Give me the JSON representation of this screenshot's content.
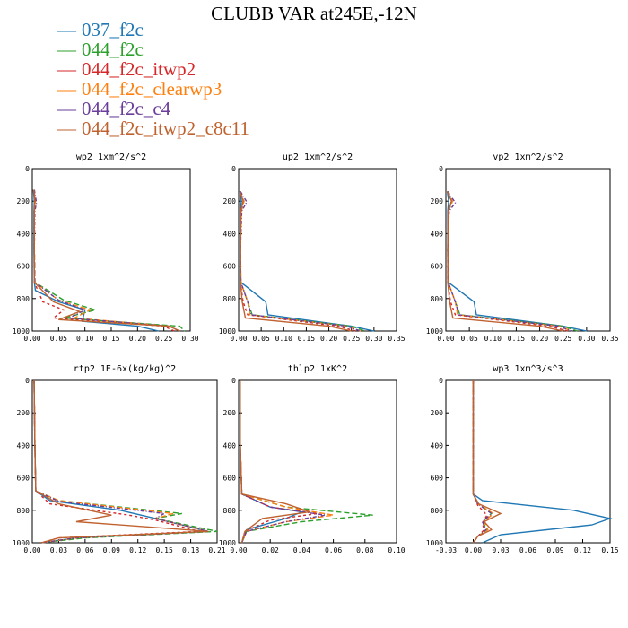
{
  "title": "CLUBB VAR at245E,-12N",
  "legend": [
    {
      "name": "037_f2c",
      "color": "#1f77b4"
    },
    {
      "name": "044_f2c",
      "color": "#2ca02c"
    },
    {
      "name": "044_f2c_itwp2",
      "color": "#d62728"
    },
    {
      "name": "044_f2c_clearwp3",
      "color": "#ff7f0e"
    },
    {
      "name": "044_f2c_c4",
      "color": "#6a3d9a"
    },
    {
      "name": "044_f2c_itwp2_c8c11",
      "color": "#c0622f"
    }
  ],
  "chart_data": [
    {
      "type": "line",
      "title": "wp2  1xm^2/s^2",
      "xlim": [
        0,
        0.3
      ],
      "xticks": [
        "0.00",
        "0.05",
        "0.10",
        "0.15",
        "0.20",
        "0.25",
        "0.30"
      ],
      "ylim": [
        1000,
        0
      ],
      "yticks": [
        "0",
        "200",
        "400",
        "600",
        "800",
        "1000"
      ],
      "series": [
        {
          "name": "037_f2c",
          "x": [
            0.002,
            0.004,
            0.003,
            0.003,
            0.004,
            0.006,
            0.05,
            0.1,
            0.095,
            0.2,
            0.24
          ],
          "y": [
            130,
            200,
            260,
            500,
            700,
            750,
            820,
            870,
            940,
            970,
            1000
          ]
        },
        {
          "name": "044_f2c",
          "x": [
            0.003,
            0.005,
            0.004,
            0.004,
            0.005,
            0.06,
            0.12,
            0.06,
            0.28,
            0.29
          ],
          "y": [
            130,
            200,
            260,
            500,
            700,
            810,
            870,
            920,
            970,
            1000
          ]
        },
        {
          "name": "044_f2c_itwp2",
          "x": [
            0.003,
            0.005,
            0.004,
            0.004,
            0.004,
            0.02,
            0.06,
            0.04,
            0.25,
            0.27
          ],
          "y": [
            130,
            200,
            260,
            500,
            700,
            820,
            870,
            920,
            970,
            1000
          ]
        },
        {
          "name": "044_f2c_clearwp3",
          "x": [
            0.003,
            0.006,
            0.004,
            0.004,
            0.005,
            0.05,
            0.11,
            0.08,
            0.26,
            0.28
          ],
          "y": [
            130,
            200,
            260,
            500,
            700,
            810,
            870,
            920,
            970,
            1000
          ]
        },
        {
          "name": "044_f2c_c4",
          "x": [
            0.004,
            0.008,
            0.005,
            0.004,
            0.005,
            0.05,
            0.1,
            0.07,
            0.26,
            0.28
          ],
          "y": [
            130,
            210,
            260,
            500,
            700,
            810,
            870,
            920,
            970,
            1000
          ]
        },
        {
          "name": "044_f2c_itwp2_c8c11",
          "x": [
            0.003,
            0.005,
            0.004,
            0.004,
            0.004,
            0.04,
            0.09,
            0.05,
            0.26,
            0.28
          ],
          "y": [
            130,
            200,
            260,
            500,
            700,
            820,
            880,
            930,
            970,
            1000
          ]
        }
      ]
    },
    {
      "type": "line",
      "title": "up2  1xm^2/s^2",
      "xlim": [
        0,
        0.35
      ],
      "xticks": [
        "0.00",
        "0.05",
        "0.10",
        "0.15",
        "0.20",
        "0.25",
        "0.30",
        "0.35"
      ],
      "ylim": [
        1000,
        0
      ],
      "yticks": [
        "0",
        "200",
        "400",
        "600",
        "800",
        "1000"
      ],
      "series": [
        {
          "name": "037_f2c",
          "x": [
            0.003,
            0.006,
            0.004,
            0.004,
            0.005,
            0.06,
            0.065,
            0.25,
            0.3
          ],
          "y": [
            140,
            200,
            260,
            500,
            700,
            820,
            900,
            970,
            1000
          ]
        },
        {
          "name": "044_f2c",
          "x": [
            0.003,
            0.012,
            0.006,
            0.004,
            0.005,
            0.02,
            0.03,
            0.25,
            0.28
          ],
          "y": [
            140,
            200,
            260,
            500,
            700,
            820,
            900,
            970,
            1000
          ]
        },
        {
          "name": "044_f2c_itwp2",
          "x": [
            0.003,
            0.01,
            0.005,
            0.004,
            0.004,
            0.01,
            0.02,
            0.22,
            0.26
          ],
          "y": [
            140,
            200,
            260,
            500,
            700,
            820,
            900,
            970,
            1000
          ]
        },
        {
          "name": "044_f2c_clearwp3",
          "x": [
            0.003,
            0.012,
            0.006,
            0.004,
            0.005,
            0.02,
            0.025,
            0.24,
            0.27
          ],
          "y": [
            140,
            200,
            260,
            500,
            700,
            820,
            900,
            970,
            1000
          ]
        },
        {
          "name": "044_f2c_c4",
          "x": [
            0.004,
            0.018,
            0.007,
            0.004,
            0.005,
            0.02,
            0.028,
            0.24,
            0.27
          ],
          "y": [
            140,
            205,
            260,
            500,
            700,
            820,
            900,
            970,
            1000
          ]
        },
        {
          "name": "044_f2c_itwp2_c8c11",
          "x": [
            0.003,
            0.01,
            0.005,
            0.004,
            0.004,
            0.008,
            0.015,
            0.2,
            0.25
          ],
          "y": [
            140,
            200,
            260,
            500,
            700,
            820,
            920,
            970,
            1000
          ]
        }
      ]
    },
    {
      "type": "line",
      "title": "vp2  1xm^2/s^2",
      "xlim": [
        0,
        0.35
      ],
      "xticks": [
        "0.00",
        "0.05",
        "0.10",
        "0.15",
        "0.20",
        "0.25",
        "0.30",
        "0.35"
      ],
      "ylim": [
        1000,
        0
      ],
      "yticks": [
        "0",
        "200",
        "400",
        "600",
        "800",
        "1000"
      ],
      "series": [
        {
          "name": "037_f2c",
          "x": [
            0.003,
            0.006,
            0.004,
            0.004,
            0.005,
            0.06,
            0.065,
            0.25,
            0.3
          ],
          "y": [
            140,
            200,
            260,
            500,
            700,
            820,
            900,
            970,
            1000
          ]
        },
        {
          "name": "044_f2c",
          "x": [
            0.003,
            0.014,
            0.006,
            0.004,
            0.005,
            0.02,
            0.03,
            0.25,
            0.28
          ],
          "y": [
            140,
            200,
            260,
            500,
            700,
            820,
            900,
            970,
            1000
          ]
        },
        {
          "name": "044_f2c_itwp2",
          "x": [
            0.003,
            0.012,
            0.005,
            0.004,
            0.004,
            0.01,
            0.02,
            0.22,
            0.26
          ],
          "y": [
            140,
            200,
            260,
            500,
            700,
            820,
            900,
            970,
            1000
          ]
        },
        {
          "name": "044_f2c_clearwp3",
          "x": [
            0.003,
            0.014,
            0.006,
            0.004,
            0.005,
            0.02,
            0.025,
            0.24,
            0.27
          ],
          "y": [
            140,
            200,
            260,
            500,
            700,
            820,
            900,
            970,
            1000
          ]
        },
        {
          "name": "044_f2c_c4",
          "x": [
            0.004,
            0.02,
            0.007,
            0.004,
            0.005,
            0.02,
            0.028,
            0.24,
            0.27
          ],
          "y": [
            140,
            210,
            260,
            500,
            700,
            820,
            900,
            970,
            1000
          ]
        },
        {
          "name": "044_f2c_itwp2_c8c11",
          "x": [
            0.003,
            0.012,
            0.005,
            0.004,
            0.004,
            0.008,
            0.015,
            0.2,
            0.25
          ],
          "y": [
            140,
            200,
            260,
            500,
            700,
            820,
            920,
            970,
            1000
          ]
        }
      ]
    },
    {
      "type": "line",
      "title": "rtp2  1E-6x(kg/kg)^2",
      "xlim": [
        0,
        0.21
      ],
      "xticks": [
        "0.00",
        "0.03",
        "0.06",
        "0.09",
        "0.12",
        "0.15",
        "0.18",
        "0.21"
      ],
      "ylim": [
        1000,
        0
      ],
      "yticks": [
        "0",
        "200",
        "400",
        "600",
        "800",
        "1000"
      ],
      "series": [
        {
          "name": "037_f2c",
          "x": [
            0.002,
            0.003,
            0.004,
            0.02,
            0.1,
            0.14,
            0.2,
            0.05,
            0.01
          ],
          "y": [
            0,
            400,
            680,
            740,
            800,
            850,
            930,
            970,
            1000
          ]
        },
        {
          "name": "044_f2c",
          "x": [
            0.002,
            0.003,
            0.004,
            0.03,
            0.17,
            0.14,
            0.21,
            0.06,
            0.01
          ],
          "y": [
            0,
            400,
            680,
            740,
            820,
            850,
            930,
            970,
            1000
          ]
        },
        {
          "name": "044_f2c_itwp2",
          "x": [
            0.002,
            0.003,
            0.004,
            0.02,
            0.11,
            0.14,
            0.19,
            0.03,
            0.01
          ],
          "y": [
            0,
            400,
            680,
            760,
            830,
            860,
            930,
            970,
            1000
          ]
        },
        {
          "name": "044_f2c_clearwp3",
          "x": [
            0.002,
            0.003,
            0.004,
            0.03,
            0.16,
            0.14,
            0.2,
            0.05,
            0.01
          ],
          "y": [
            0,
            400,
            680,
            740,
            820,
            850,
            930,
            970,
            1000
          ]
        },
        {
          "name": "044_f2c_c4",
          "x": [
            0.002,
            0.003,
            0.004,
            0.03,
            0.15,
            0.14,
            0.2,
            0.05,
            0.01
          ],
          "y": [
            0,
            400,
            680,
            745,
            820,
            850,
            930,
            970,
            1000
          ]
        },
        {
          "name": "044_f2c_itwp2_c8c11",
          "x": [
            0.002,
            0.003,
            0.004,
            0.03,
            0.09,
            0.05,
            0.2,
            0.03,
            0.01
          ],
          "y": [
            0,
            400,
            680,
            760,
            830,
            870,
            930,
            970,
            1000
          ]
        }
      ]
    },
    {
      "type": "line",
      "title": "thlp2  1xK^2",
      "xlim": [
        0,
        0.1
      ],
      "xticks": [
        "0.00",
        "0.02",
        "0.04",
        "0.06",
        "0.08",
        "0.10"
      ],
      "ylim": [
        1000,
        0
      ],
      "yticks": [
        "0",
        "200",
        "400",
        "600",
        "800",
        "1000"
      ],
      "series": [
        {
          "name": "037_f2c",
          "x": [
            0.001,
            0.001,
            0.002,
            0.02,
            0.04,
            0.03,
            0.005,
            0.002
          ],
          "y": [
            0,
            400,
            700,
            780,
            810,
            850,
            920,
            1000
          ]
        },
        {
          "name": "044_f2c",
          "x": [
            0.001,
            0.001,
            0.002,
            0.03,
            0.085,
            0.04,
            0.005,
            0.002
          ],
          "y": [
            0,
            400,
            700,
            780,
            830,
            870,
            930,
            1000
          ]
        },
        {
          "name": "044_f2c_itwp2",
          "x": [
            0.001,
            0.001,
            0.002,
            0.02,
            0.05,
            0.02,
            0.004,
            0.002
          ],
          "y": [
            0,
            400,
            700,
            780,
            820,
            860,
            930,
            1000
          ]
        },
        {
          "name": "044_f2c_clearwp3",
          "x": [
            0.001,
            0.001,
            0.002,
            0.03,
            0.06,
            0.03,
            0.005,
            0.002
          ],
          "y": [
            0,
            400,
            700,
            780,
            830,
            870,
            930,
            1000
          ]
        },
        {
          "name": "044_f2c_c4",
          "x": [
            0.001,
            0.001,
            0.002,
            0.02,
            0.055,
            0.03,
            0.005,
            0.002
          ],
          "y": [
            0,
            400,
            700,
            780,
            830,
            870,
            930,
            1000
          ]
        },
        {
          "name": "044_f2c_itwp2_c8c11",
          "x": [
            0.001,
            0.001,
            0.002,
            0.03,
            0.045,
            0.015,
            0.004,
            0.002
          ],
          "y": [
            0,
            400,
            700,
            760,
            810,
            850,
            930,
            1000
          ]
        }
      ]
    },
    {
      "type": "line",
      "title": "wp3  1xm^3/s^3",
      "xlim": [
        -0.03,
        0.15
      ],
      "xticks": [
        "-0.03",
        "0.00",
        "0.03",
        "0.06",
        "0.09",
        "0.12",
        "0.15"
      ],
      "ylim": [
        1000,
        0
      ],
      "yticks": [
        "0",
        "200",
        "400",
        "600",
        "800",
        "1000"
      ],
      "series": [
        {
          "name": "037_f2c",
          "x": [
            0.0,
            0.0,
            0.0,
            0.01,
            0.11,
            0.15,
            0.13,
            0.03,
            0.01
          ],
          "y": [
            0,
            400,
            700,
            740,
            800,
            850,
            890,
            950,
            1000
          ]
        },
        {
          "name": "044_f2c",
          "x": [
            0.0,
            0.0,
            0.0,
            0.005,
            0.02,
            0.01,
            0.015,
            0.005,
            0.0
          ],
          "y": [
            0,
            400,
            700,
            760,
            820,
            870,
            920,
            960,
            1000
          ]
        },
        {
          "name": "044_f2c_itwp2",
          "x": [
            0.0,
            0.0,
            0.0,
            0.005,
            0.015,
            0.01,
            0.012,
            0.005,
            0.0
          ],
          "y": [
            0,
            400,
            700,
            770,
            830,
            880,
            920,
            960,
            1000
          ]
        },
        {
          "name": "044_f2c_clearwp3",
          "x": [
            0.0,
            0.0,
            0.0,
            0.005,
            0.022,
            0.012,
            0.016,
            0.005,
            0.0
          ],
          "y": [
            0,
            400,
            700,
            760,
            820,
            870,
            920,
            960,
            1000
          ]
        },
        {
          "name": "044_f2c_c4",
          "x": [
            0.0,
            0.0,
            0.0,
            0.005,
            0.02,
            0.01,
            0.014,
            0.005,
            0.0
          ],
          "y": [
            0,
            400,
            700,
            760,
            820,
            870,
            920,
            960,
            1000
          ]
        },
        {
          "name": "044_f2c_itwp2_c8c11",
          "x": [
            0.0,
            0.0,
            0.0,
            0.006,
            0.03,
            0.012,
            0.02,
            0.005,
            0.0
          ],
          "y": [
            0,
            400,
            700,
            760,
            820,
            870,
            920,
            960,
            1000
          ]
        }
      ]
    }
  ]
}
